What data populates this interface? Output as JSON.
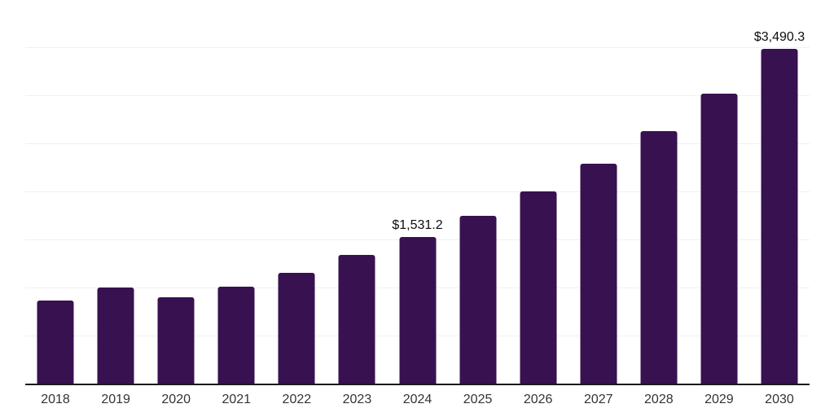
{
  "chart_data": {
    "type": "bar",
    "title": "",
    "xlabel": "",
    "ylabel": "",
    "categories": [
      "2018",
      "2019",
      "2020",
      "2021",
      "2022",
      "2023",
      "2024",
      "2025",
      "2026",
      "2027",
      "2028",
      "2029",
      "2030"
    ],
    "values": [
      870,
      1005,
      903,
      1020,
      1165,
      1345,
      1531.2,
      1755,
      2005,
      2293,
      2632,
      3025,
      3490.3
    ],
    "data_labels": {
      "2024": "$1,531.2",
      "2030": "$3,490.3"
    },
    "ylim": [
      0,
      4000
    ],
    "gridline_count": 8,
    "grid": "horizontal",
    "legend_position": "none",
    "colors": {
      "bar": "#371150",
      "axis_line": "#1A1A1A",
      "gridline": "#F0F0F0",
      "tick_label": "#333333",
      "data_label": "#0D0D0D",
      "background": "#FFFFFF"
    }
  }
}
